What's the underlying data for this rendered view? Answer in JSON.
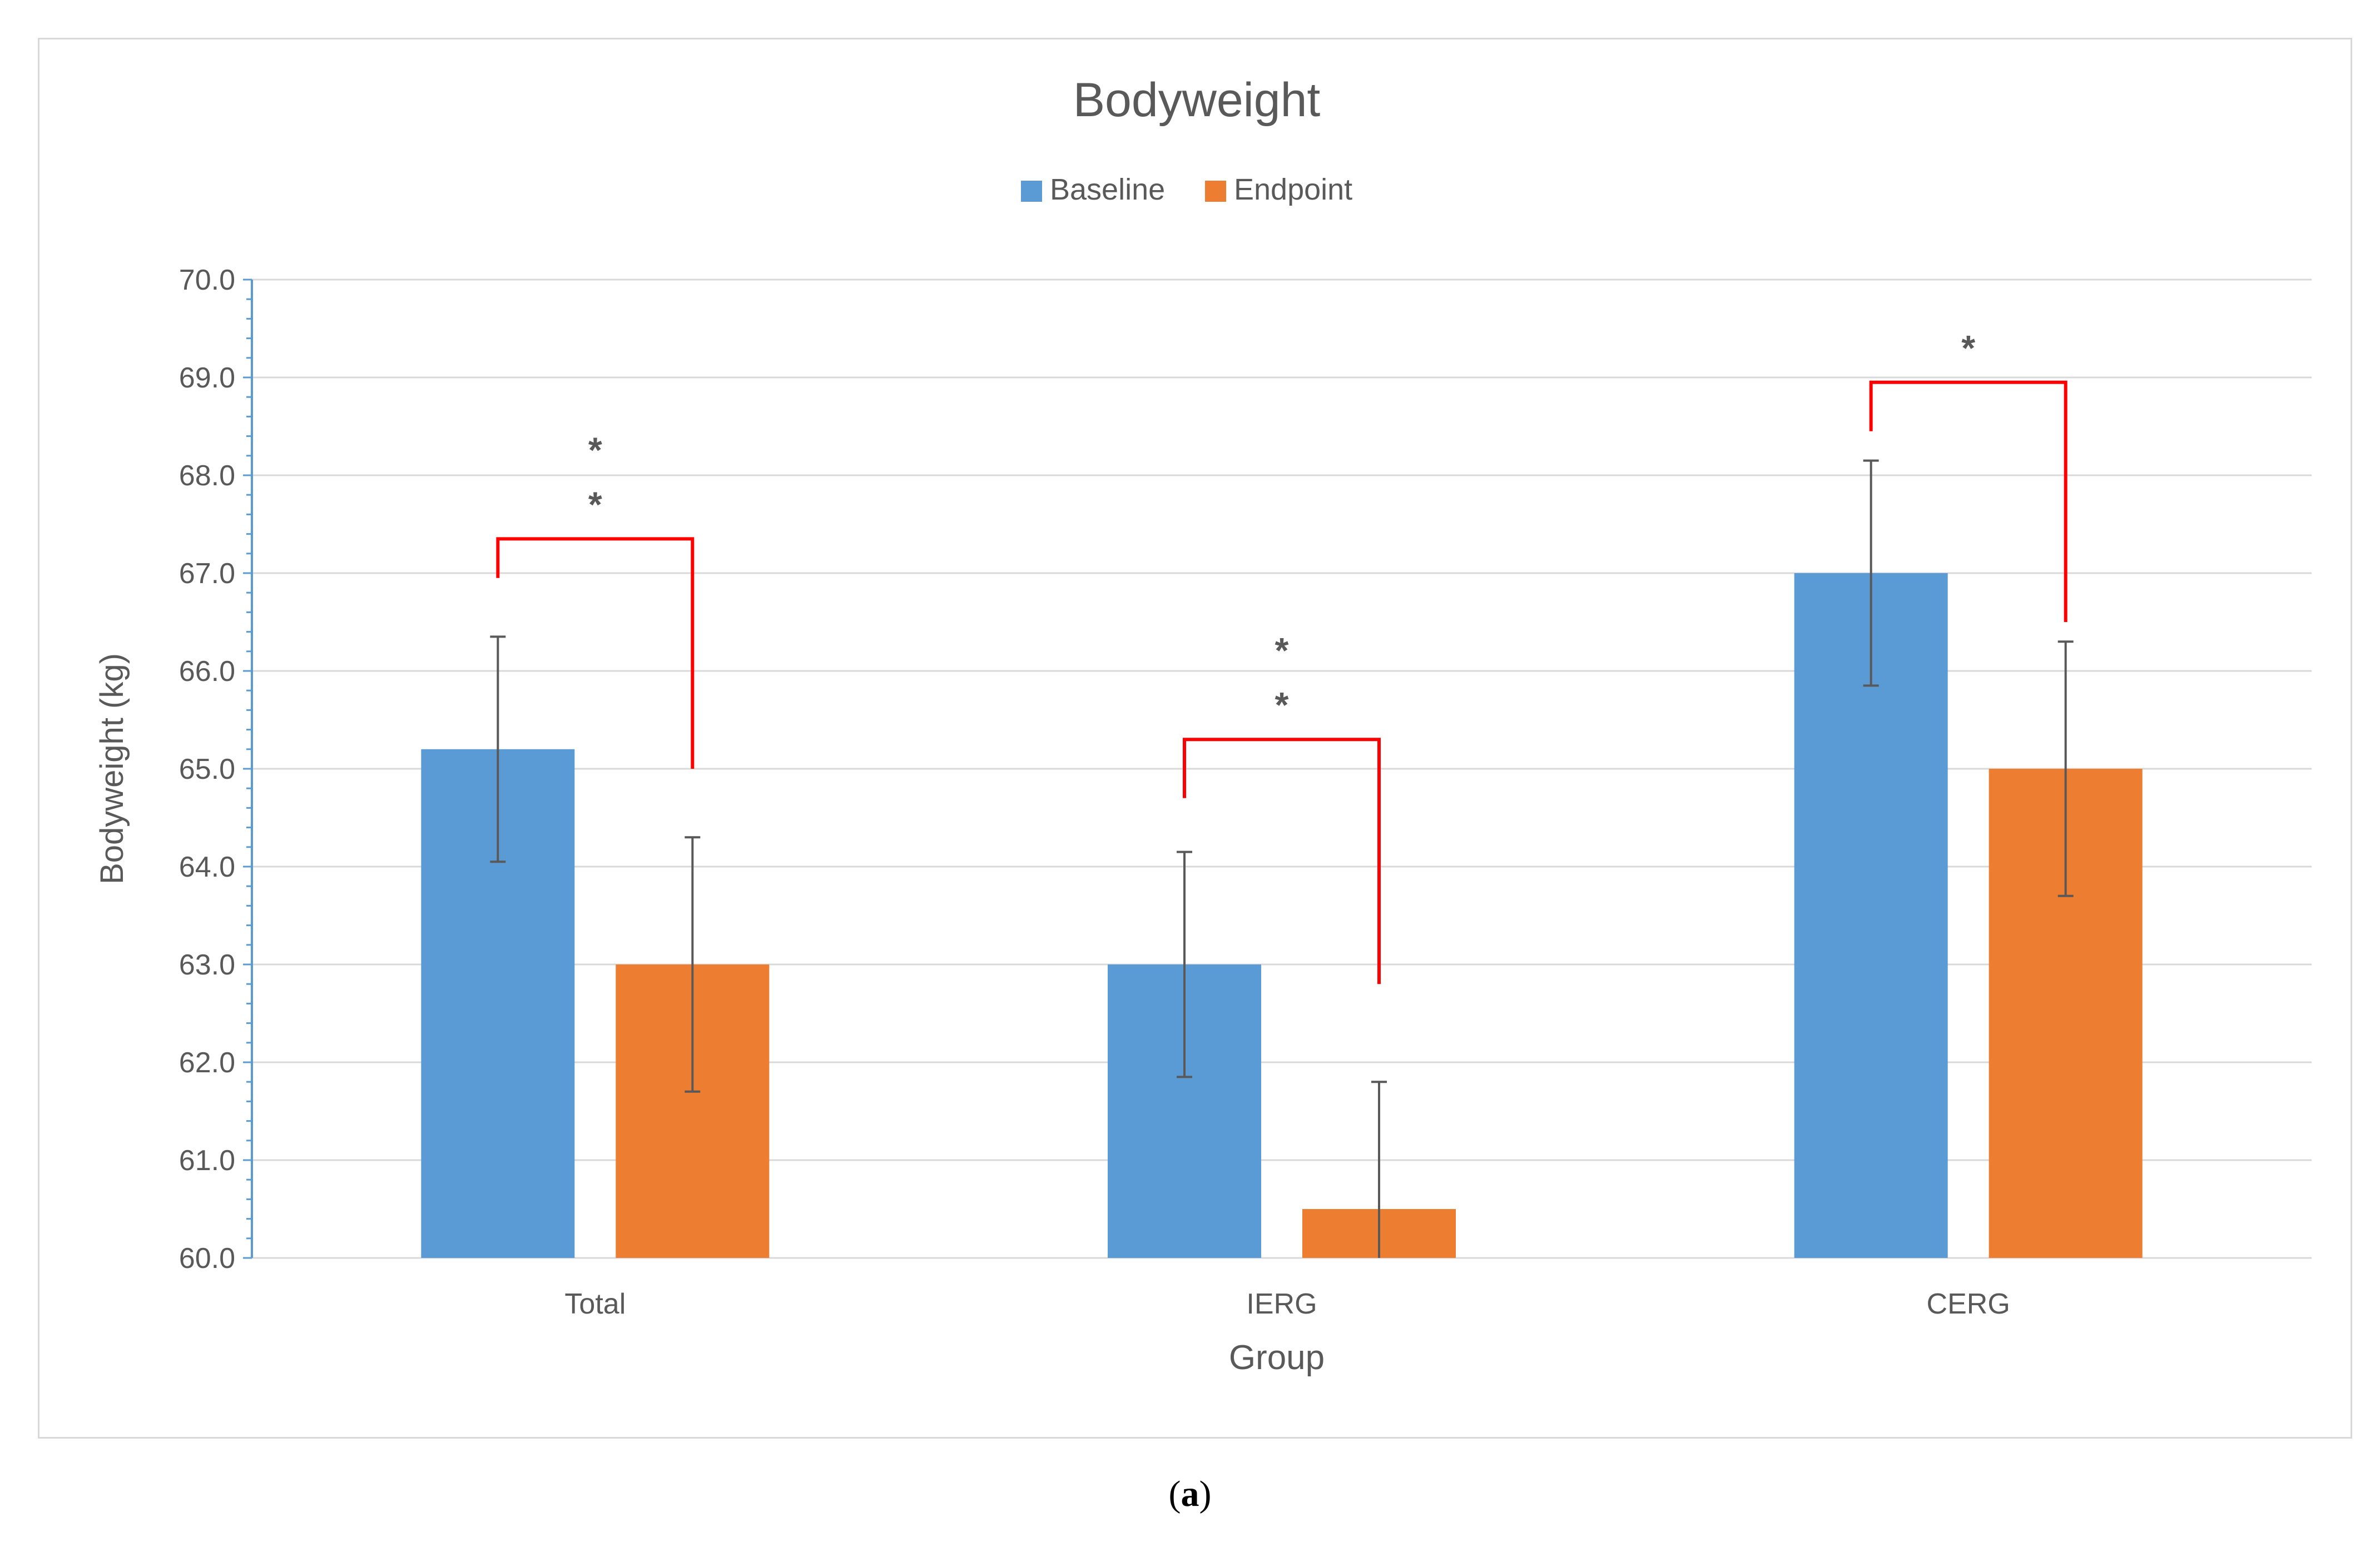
{
  "chart_data": {
    "type": "bar",
    "title": "Bodyweight",
    "xlabel": "Group",
    "ylabel": "Bodyweight (kg)",
    "ylim": [
      60.0,
      70.0
    ],
    "ytick_step": 1.0,
    "yticks": [
      "60.0",
      "61.0",
      "62.0",
      "63.0",
      "64.0",
      "65.0",
      "66.0",
      "67.0",
      "68.0",
      "69.0",
      "70.0"
    ],
    "grid": true,
    "legend_position": "top-center",
    "categories": [
      "Total",
      "IERG",
      "CERG"
    ],
    "series": [
      {
        "name": "Baseline",
        "color": "#5b9bd5",
        "values": [
          65.2,
          63.0,
          67.0
        ],
        "errors": [
          1.15,
          1.15,
          1.15
        ]
      },
      {
        "name": "Endpoint",
        "color": "#ed7d31",
        "values": [
          63.0,
          60.5,
          65.0
        ],
        "errors": [
          1.3,
          1.3,
          1.3
        ]
      }
    ],
    "significance": [
      {
        "category": "Total",
        "label": "**",
        "bracket_y": 67.35,
        "left_end": 66.95,
        "right_end": 65.0
      },
      {
        "category": "IERG",
        "label": "**",
        "bracket_y": 65.3,
        "left_end": 64.7,
        "right_end": 62.8
      },
      {
        "category": "CERG",
        "label": "*",
        "bracket_y": 68.95,
        "left_end": 68.45,
        "right_end": 66.5
      }
    ],
    "bracket_color": "#ff0000",
    "error_bar_color": "#595959"
  },
  "caption": {
    "open": "(",
    "label": "a",
    "close": ")"
  }
}
